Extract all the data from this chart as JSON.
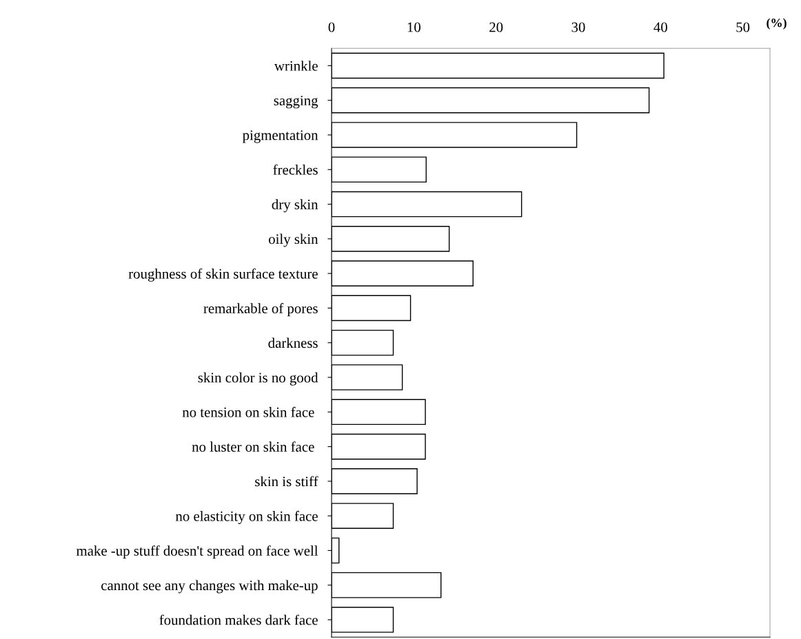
{
  "chart_data": {
    "type": "bar",
    "orientation": "horizontal",
    "xlabel": "(%)",
    "categories": [
      "wrinkle",
      "sagging",
      "pigmentation",
      "freckles",
      "dry skin",
      "oily skin",
      "roughness of skin surface texture",
      "remarkable of pores",
      "darkness",
      "skin color is no good",
      "no tension on skin face ",
      "no luster on skin face ",
      "skin is stiff",
      "no elasticity on skin face",
      "make -up stuff doesn't spread on face well",
      "cannot see any changes with make-up",
      "foundation makes dark face"
    ],
    "values": [
      40.4,
      38.6,
      29.8,
      11.5,
      23.1,
      14.3,
      17.2,
      9.6,
      7.5,
      8.6,
      11.4,
      11.4,
      10.4,
      7.5,
      0.9,
      13.3,
      7.5
    ],
    "color": "#ffffff",
    "xlim": [
      0,
      53.3
    ],
    "xticks": [
      0,
      10,
      20,
      30,
      40,
      50
    ],
    "grid": false,
    "legend": false
  }
}
